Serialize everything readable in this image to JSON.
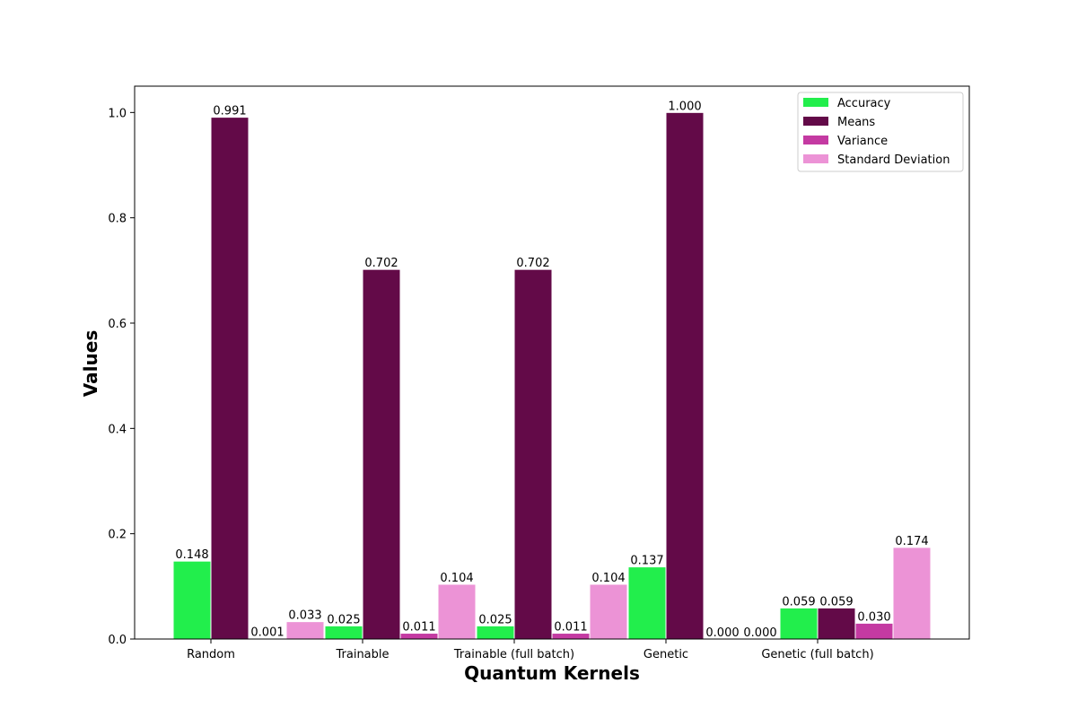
{
  "chart_data": {
    "type": "bar",
    "title": "",
    "xlabel": "Quantum Kernels",
    "ylabel": "Values",
    "categories": [
      "Random",
      "Trainable",
      "Trainable (full batch)",
      "Genetic",
      "Genetic (full batch)"
    ],
    "series": [
      {
        "name": "Accuracy",
        "color": "#22ee4c",
        "values": [
          0.148,
          0.025,
          0.025,
          0.137,
          0.059
        ],
        "labels": [
          "0.148",
          "0.025",
          "0.025",
          "0.137",
          "0.059"
        ]
      },
      {
        "name": "Means",
        "color": "#630a48",
        "values": [
          0.991,
          0.702,
          0.702,
          1.0,
          0.059
        ],
        "labels": [
          "0.991",
          "0.702",
          "0.702",
          "1.000",
          "0.059"
        ]
      },
      {
        "name": "Variance",
        "color": "#c43aa2",
        "values": [
          0.001,
          0.011,
          0.011,
          0.0,
          0.03
        ],
        "labels": [
          "0.001",
          "0.011",
          "0.011",
          "0.000",
          "0.030"
        ]
      },
      {
        "name": "Standard Deviation",
        "color": "#ec93d6",
        "values": [
          0.033,
          0.104,
          0.104,
          0.0,
          0.174
        ],
        "labels": [
          "0.033",
          "0.104",
          "0.104",
          "0.000",
          "0.174"
        ]
      }
    ],
    "ylim": [
      0,
      1.05
    ],
    "yticks": [
      0.0,
      0.2,
      0.4,
      0.6,
      0.8,
      1.0
    ],
    "ytick_labels": [
      "0.0",
      "0.2",
      "0.4",
      "0.6",
      "0.8",
      "1.0"
    ],
    "grid": false,
    "legend_position": "top-right"
  }
}
